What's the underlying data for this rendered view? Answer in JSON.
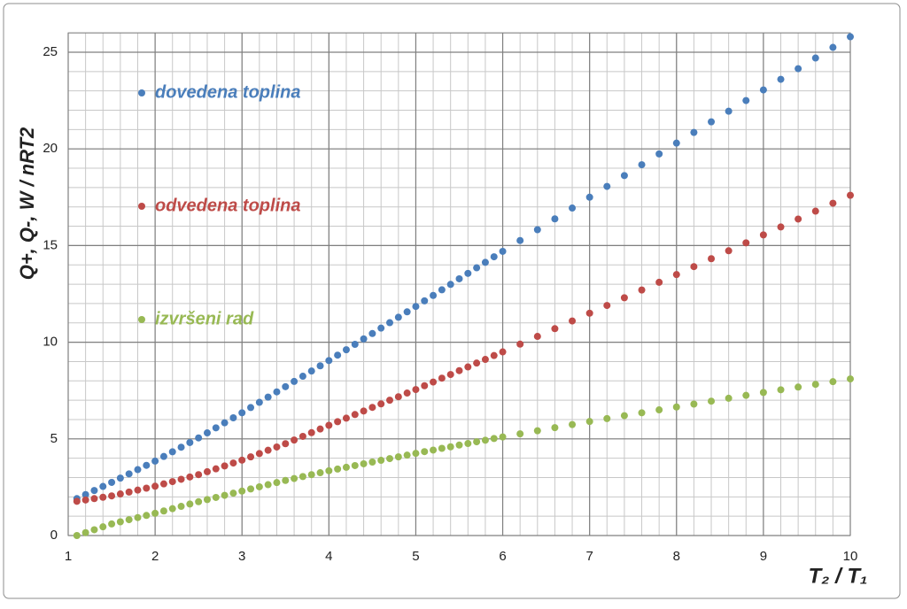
{
  "chart_data": {
    "type": "scatter",
    "y_label": "Q+,  Q-, W / nRT2",
    "x_label": "T₂ / T₁",
    "x": [
      1.1,
      1.2,
      1.3,
      1.4,
      1.5,
      1.6,
      1.7,
      1.8,
      1.9,
      2.0,
      2.1,
      2.2,
      2.3,
      2.4,
      2.5,
      2.6,
      2.7,
      2.8,
      2.9,
      3.0,
      3.1,
      3.2,
      3.3,
      3.4,
      3.5,
      3.6,
      3.7,
      3.8,
      3.9,
      4.0,
      4.1,
      4.2,
      4.3,
      4.4,
      4.5,
      4.6,
      4.7,
      4.8,
      4.9,
      5.0,
      5.1,
      5.2,
      5.3,
      5.4,
      5.5,
      5.6,
      5.7,
      5.8,
      5.9,
      6.0,
      6.2,
      6.4,
      6.6,
      6.8,
      7.0,
      7.2,
      7.4,
      7.6,
      7.8,
      8.0,
      8.2,
      8.4,
      8.6,
      8.8,
      9.0,
      9.2,
      9.4,
      9.6,
      9.8,
      10.0
    ],
    "series": [
      {
        "name": "dovedena toplina",
        "color": "#4a7ebb",
        "values": [
          1.91,
          2.12,
          2.33,
          2.54,
          2.75,
          2.97,
          3.19,
          3.41,
          3.63,
          3.85,
          4.09,
          4.33,
          4.57,
          4.81,
          5.05,
          5.31,
          5.57,
          5.83,
          6.09,
          6.35,
          6.62,
          6.89,
          7.16,
          7.43,
          7.7,
          7.97,
          8.24,
          8.51,
          8.78,
          9.05,
          9.33,
          9.61,
          9.89,
          10.17,
          10.45,
          10.73,
          11.01,
          11.29,
          11.57,
          11.85,
          12.14,
          12.42,
          12.71,
          12.99,
          13.28,
          13.56,
          13.85,
          14.13,
          14.42,
          14.7,
          15.26,
          15.82,
          16.38,
          16.94,
          17.5,
          18.06,
          18.62,
          19.18,
          19.74,
          20.3,
          20.85,
          21.4,
          21.95,
          22.5,
          23.05,
          23.6,
          24.15,
          24.7,
          25.25,
          25.8
        ]
      },
      {
        "name": "odvedena toplina",
        "color": "#be4b48",
        "values": [
          1.77,
          1.84,
          1.91,
          1.98,
          2.05,
          2.15,
          2.25,
          2.35,
          2.45,
          2.55,
          2.67,
          2.79,
          2.91,
          3.03,
          3.15,
          3.3,
          3.45,
          3.6,
          3.75,
          3.9,
          4.07,
          4.24,
          4.41,
          4.58,
          4.75,
          4.94,
          5.13,
          5.32,
          5.51,
          5.7,
          5.89,
          6.07,
          6.26,
          6.44,
          6.63,
          6.81,
          7.0,
          7.18,
          7.37,
          7.55,
          7.75,
          7.94,
          8.14,
          8.33,
          8.53,
          8.72,
          8.92,
          9.11,
          9.31,
          9.5,
          9.9,
          10.3,
          10.7,
          11.1,
          11.5,
          11.9,
          12.3,
          12.7,
          13.1,
          13.5,
          13.91,
          14.32,
          14.73,
          15.14,
          15.55,
          15.96,
          16.37,
          16.78,
          17.19,
          17.6
        ]
      },
      {
        "name": "izvršeni rad",
        "color": "#98b954",
        "values": [
          0,
          0.15,
          0.3,
          0.45,
          0.6,
          0.71,
          0.82,
          0.93,
          1.04,
          1.15,
          1.27,
          1.39,
          1.51,
          1.63,
          1.75,
          1.86,
          1.97,
          2.08,
          2.19,
          2.3,
          2.41,
          2.52,
          2.63,
          2.74,
          2.85,
          2.95,
          3.05,
          3.15,
          3.25,
          3.35,
          3.44,
          3.53,
          3.62,
          3.71,
          3.8,
          3.89,
          3.98,
          4.07,
          4.16,
          4.25,
          4.34,
          4.42,
          4.51,
          4.59,
          4.68,
          4.76,
          4.85,
          4.93,
          5.02,
          5.1,
          5.26,
          5.42,
          5.58,
          5.74,
          5.9,
          6.05,
          6.2,
          6.35,
          6.5,
          6.65,
          6.8,
          6.95,
          7.1,
          7.25,
          7.4,
          7.54,
          7.68,
          7.82,
          7.96,
          8.1
        ]
      }
    ],
    "xlim": [
      1,
      10
    ],
    "xticks": [
      1,
      2,
      3,
      4,
      5,
      6,
      7,
      8,
      9,
      10
    ],
    "ylim": [
      0,
      26
    ],
    "yticks": [
      0,
      5,
      10,
      15,
      20,
      25
    ],
    "grid": true,
    "minor_grid": {
      "x": 0.2,
      "y": 1
    },
    "legend": "inside-left"
  }
}
